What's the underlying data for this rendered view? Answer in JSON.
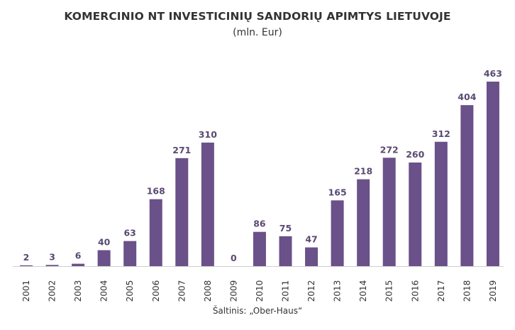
{
  "chart_data": {
    "type": "bar",
    "title": "KOMERCINIO NT INVESTICINIŲ SANDORIŲ APIMTYS LIETUVOJE",
    "subtitle": "(mln. Eur)",
    "categories": [
      "2001",
      "2002",
      "2003",
      "2004",
      "2005",
      "2006",
      "2007",
      "2008",
      "2009",
      "2010",
      "2011",
      "2012",
      "2013",
      "2014",
      "2015",
      "2016",
      "2017",
      "2018",
      "2019"
    ],
    "values": [
      2,
      3,
      6,
      40,
      63,
      168,
      271,
      310,
      0,
      86,
      75,
      47,
      165,
      218,
      272,
      260,
      312,
      404,
      463
    ],
    "ylim": [
      0,
      463
    ],
    "grid": false,
    "legend": "none",
    "bar_color": "#6a5189",
    "source": "Šaltinis: „Ober-Haus“"
  }
}
